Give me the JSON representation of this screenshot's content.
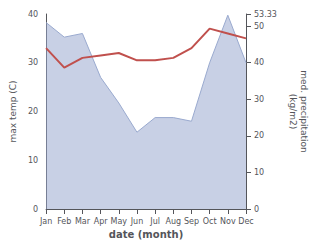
{
  "chart_data": {
    "type": "line",
    "categories": [
      "Jan",
      "Feb",
      "Mar",
      "Apr",
      "May",
      "Jun",
      "Jul",
      "Aug",
      "Sep",
      "Oct",
      "Nov",
      "Dec"
    ],
    "series": [
      {
        "type": "area",
        "color": "#9aaacf",
        "axis": "y2",
        "values": [
          51,
          47,
          48,
          36,
          29,
          21,
          25,
          25,
          24,
          40,
          53,
          40
        ]
      },
      {
        "type": "line",
        "color": "#c0504d",
        "values": [
          33,
          29,
          31,
          31.5,
          32,
          30.5,
          30.5,
          31,
          33,
          37,
          36,
          35
        ]
      }
    ],
    "xlabel": "date (month)",
    "ylabel": "max temp (C)",
    "y2label": "med. precipitation\n(kg/m2)",
    "ylim": [
      0,
      40
    ],
    "yticks": [
      0,
      10,
      20,
      30,
      40
    ],
    "y2lim": [
      0,
      53.33
    ],
    "y2ticks": [
      0,
      10,
      20,
      30,
      40,
      50
    ],
    "grid": false
  }
}
